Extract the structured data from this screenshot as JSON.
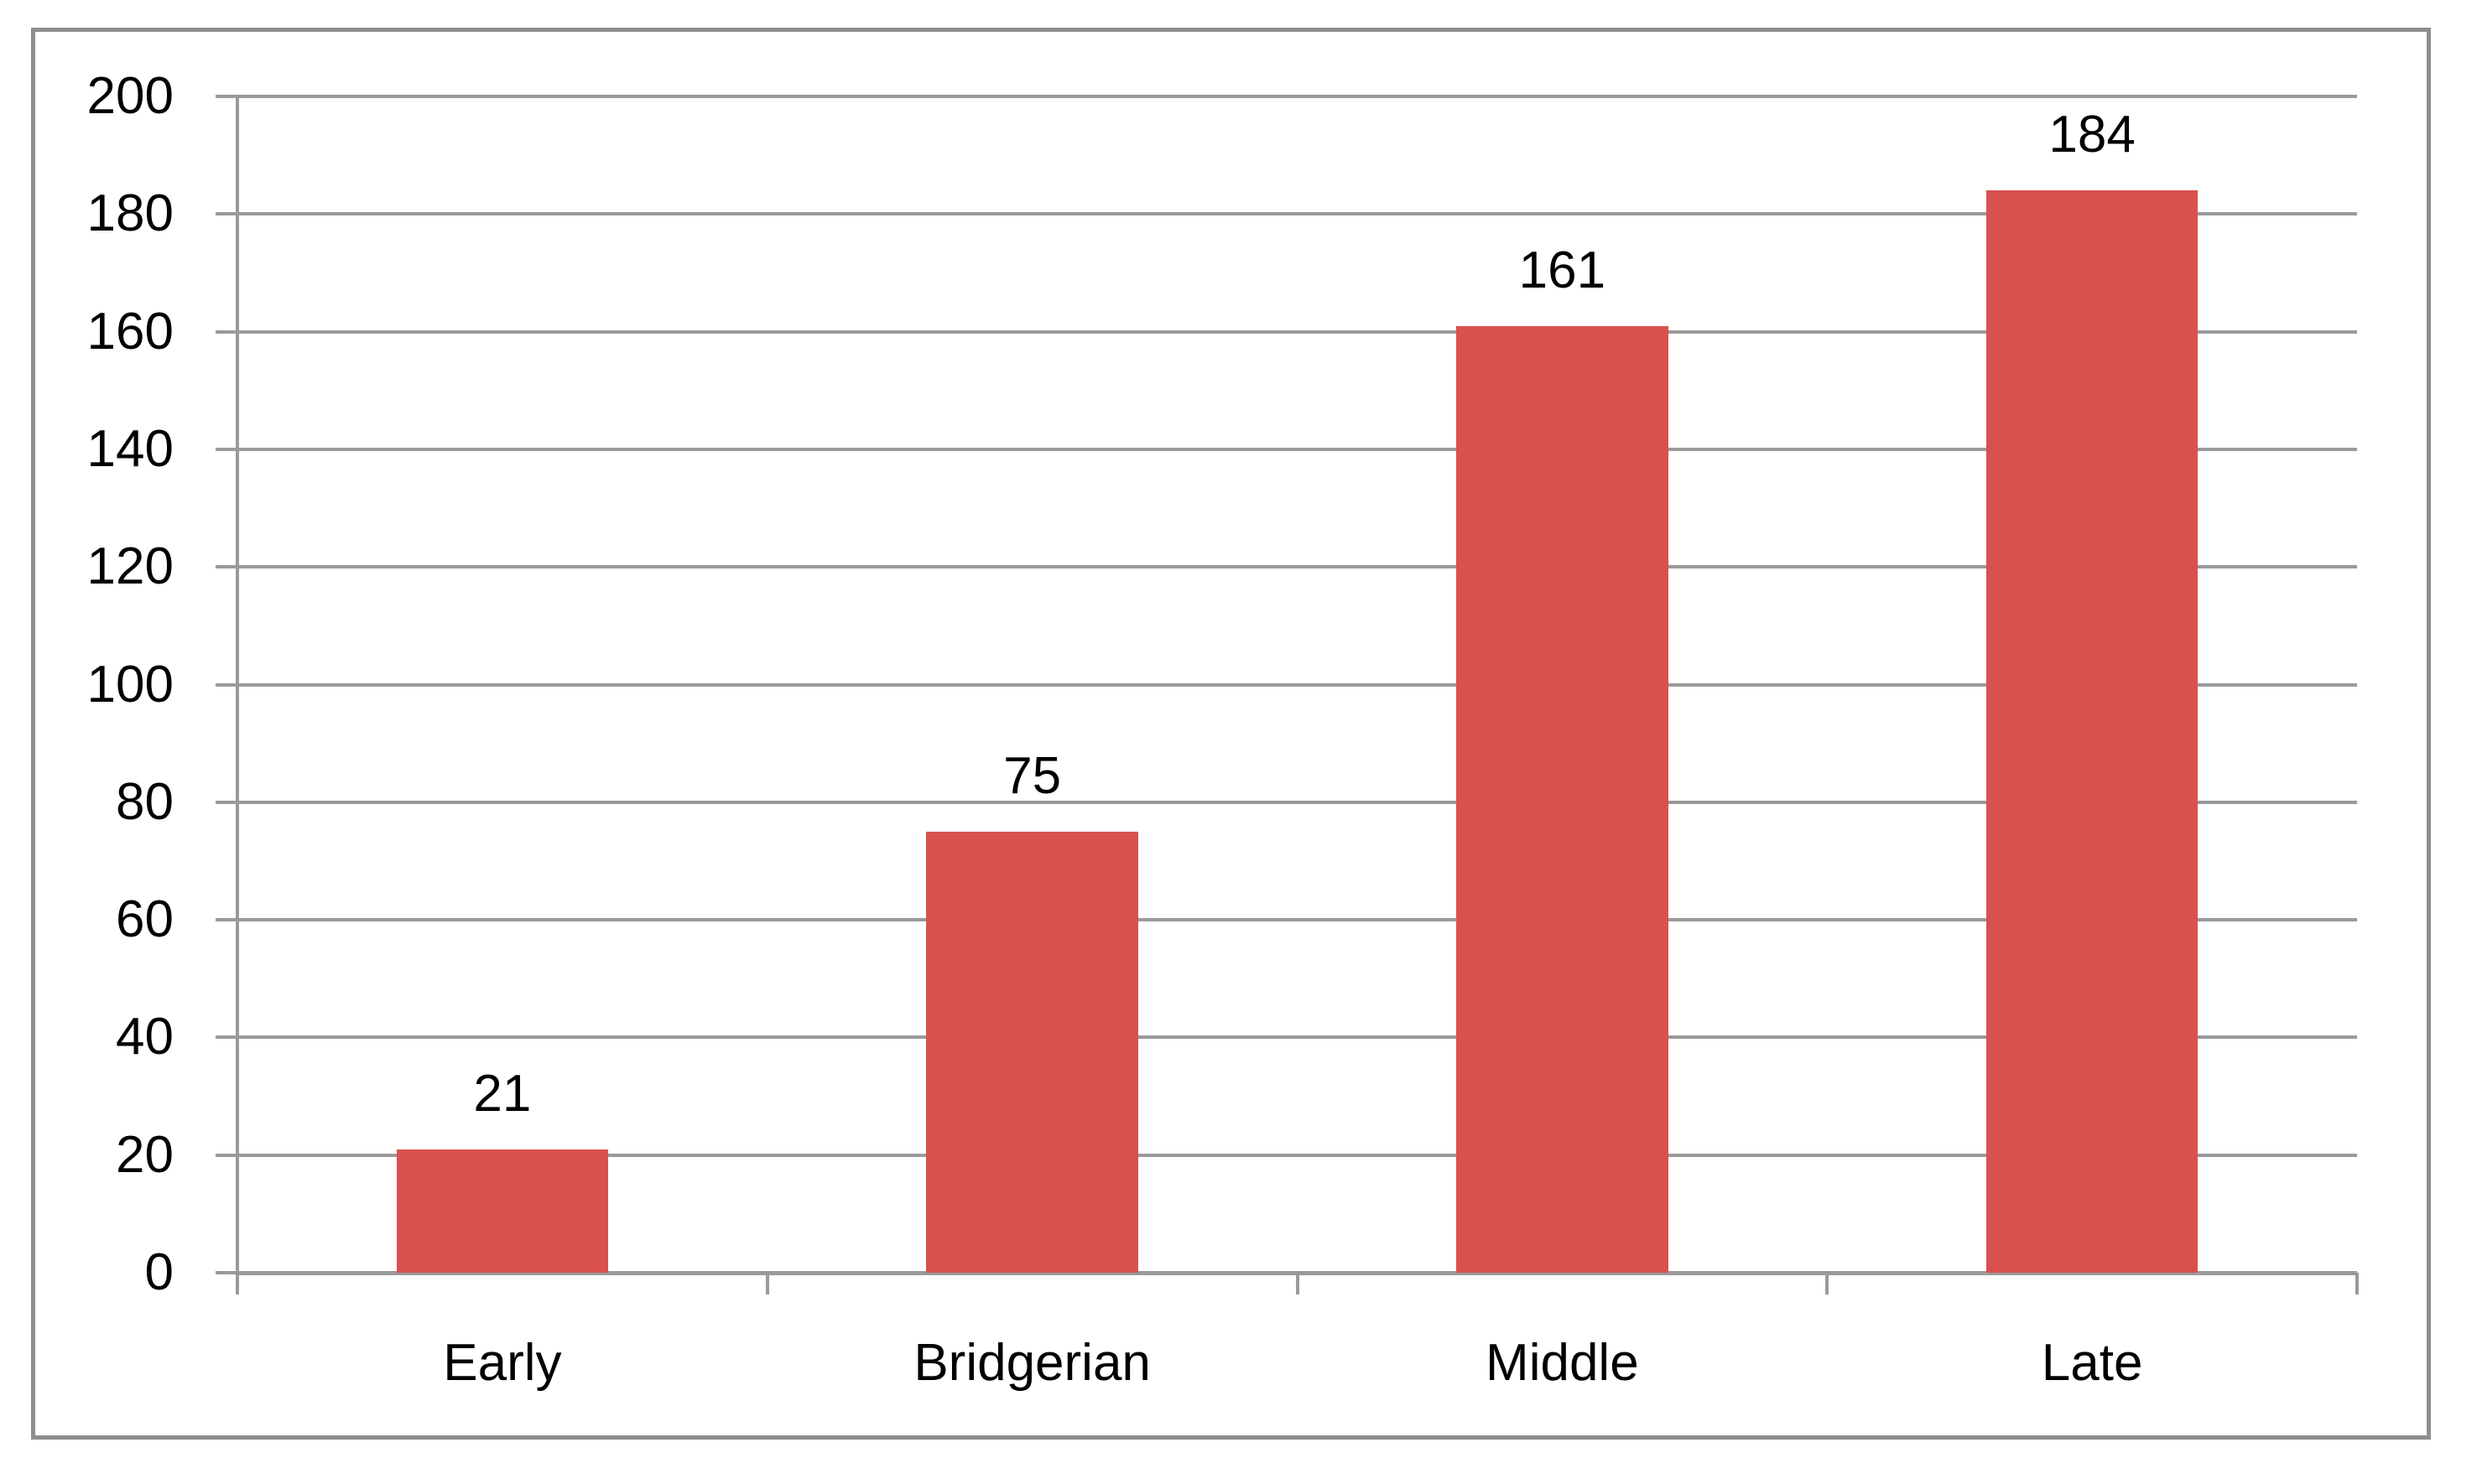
{
  "chart_data": {
    "type": "bar",
    "title": "",
    "xlabel": "",
    "ylabel": "",
    "categories": [
      "Early",
      "Bridgerian",
      "Middle",
      "Late"
    ],
    "values": [
      21,
      75,
      161,
      184
    ],
    "value_labels": [
      "21",
      "75",
      "161",
      "184"
    ],
    "ylim": [
      0,
      200
    ],
    "ytick_step": 20,
    "yticks": [
      0,
      20,
      40,
      60,
      80,
      100,
      120,
      140,
      160,
      180,
      200
    ],
    "ytick_labels": [
      "0",
      "20",
      "40",
      "60",
      "80",
      "100",
      "120",
      "140",
      "160",
      "180",
      "200"
    ],
    "grid": true,
    "legend": false,
    "show_value_labels": true,
    "colors": {
      "bar": "#D9514E",
      "gridline": "#9A9A9A",
      "axis": "#9A9A9A",
      "frame": "#8E8E8E",
      "text": "#000000",
      "background": "#FFFFFF"
    }
  }
}
